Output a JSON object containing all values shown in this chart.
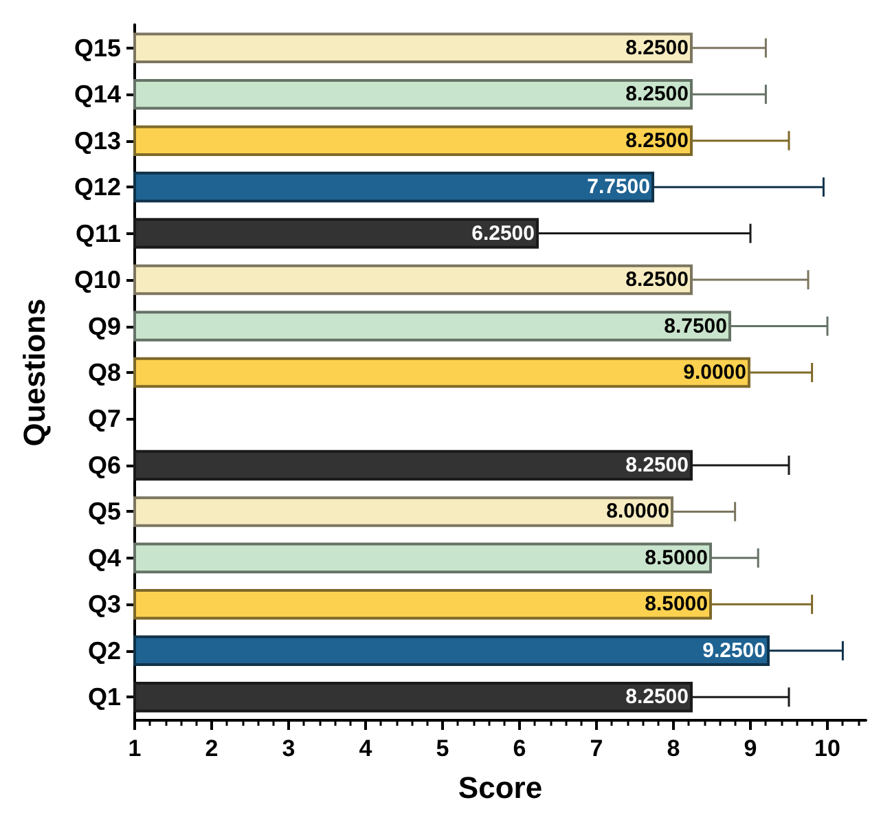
{
  "chart_data": {
    "type": "bar",
    "orientation": "horizontal",
    "xlabel": "Score",
    "ylabel": "Questions",
    "categories": [
      "Q15",
      "Q14",
      "Q13",
      "Q12",
      "Q11",
      "Q10",
      "Q9",
      "Q8",
      "Q7",
      "Q6",
      "Q5",
      "Q4",
      "Q3",
      "Q2",
      "Q1"
    ],
    "values": [
      8.25,
      8.25,
      8.25,
      7.75,
      6.25,
      8.25,
      8.75,
      9.0,
      null,
      8.25,
      8.0,
      8.5,
      8.5,
      9.25,
      8.25
    ],
    "value_labels": [
      "8.2500",
      "8.2500",
      "8.2500",
      "7.7500",
      "6.2500",
      "8.2500",
      "8.7500",
      "9.0000",
      null,
      "8.2500",
      "8.0000",
      "8.5000",
      "8.5000",
      "9.2500",
      "8.2500"
    ],
    "errors": [
      [
        8.25,
        9.2
      ],
      [
        8.25,
        9.2
      ],
      [
        8.25,
        9.5
      ],
      [
        7.75,
        9.95
      ],
      [
        6.25,
        9.0
      ],
      [
        8.25,
        9.75
      ],
      [
        8.75,
        10.0
      ],
      [
        9.0,
        9.8
      ],
      null,
      [
        8.25,
        9.5
      ],
      [
        8.0,
        8.8
      ],
      [
        8.5,
        9.1
      ],
      [
        8.5,
        9.8
      ],
      [
        9.25,
        10.2
      ],
      [
        8.25,
        9.5
      ]
    ],
    "colors": [
      "#f7ecc0",
      "#c9e4cc",
      "#fcd14f",
      "#1f6393",
      "#333333",
      "#f7ecc0",
      "#c9e4cc",
      "#fcd14f",
      null,
      "#333333",
      "#f7ecc0",
      "#c9e4cc",
      "#fcd14f",
      "#1f6393",
      "#333333"
    ],
    "xlim": [
      1,
      10.5
    ],
    "xticks": [
      1,
      2,
      3,
      4,
      5,
      6,
      7,
      8,
      9,
      10
    ],
    "grid": false
  }
}
